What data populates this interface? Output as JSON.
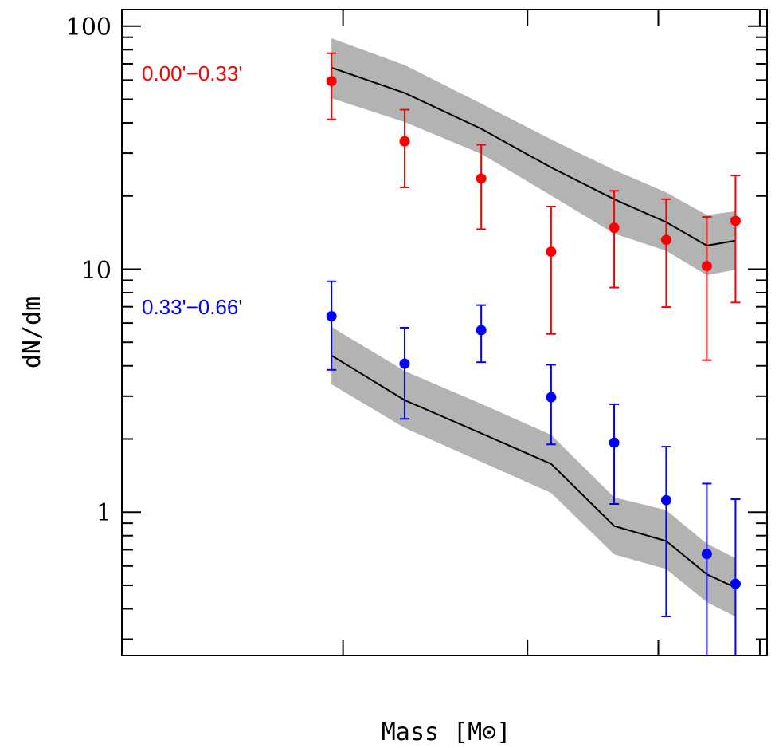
{
  "chart_data": {
    "type": "scatter",
    "title": "",
    "xlabel": "Mass [M⊙]",
    "ylabel": "dN/dm",
    "xscale": "log",
    "yscale": "log",
    "xlim": [
      1.23,
      5.08
    ],
    "ylim": [
      0.257,
      117
    ],
    "x_ticks": [
      2,
      3,
      4,
      5
    ],
    "x_tick_labels_visible": false,
    "y_ticks": [
      1,
      10,
      100
    ],
    "y_tick_labels": [
      "1",
      "10",
      "100"
    ],
    "grid": false,
    "colors": {
      "model_line": "#000000",
      "model_band": "#b3b3b3",
      "frame": "#000000"
    },
    "series": [
      {
        "name": "0.00'−0.33'",
        "color": "#ff0000",
        "x": [
          1.95,
          2.29,
          2.71,
          3.16,
          3.63,
          4.07,
          4.45,
          4.74
        ],
        "y": [
          59.4,
          33.6,
          23.6,
          11.8,
          14.8,
          13.2,
          10.3,
          15.8
        ],
        "y_err_high": [
          77.4,
          45.3,
          32.5,
          18.1,
          21.0,
          19.4,
          16.4,
          24.3
        ],
        "y_err_low": [
          41.3,
          21.7,
          14.6,
          5.41,
          8.4,
          6.98,
          4.22,
          7.29
        ],
        "model": {
          "x": [
            1.95,
            2.29,
            2.71,
            3.16,
            3.63,
            4.07,
            4.45,
            4.74
          ],
          "y": [
            67.5,
            53.1,
            37.8,
            26.2,
            19.4,
            15.6,
            12.5,
            13.1
          ],
          "upper": [
            89.1,
            69.2,
            48.0,
            34.2,
            25.6,
            20.7,
            16.7,
            17.3
          ],
          "lower": [
            50.5,
            40.3,
            29.8,
            20.1,
            14.0,
            11.9,
            9.44,
            9.94
          ]
        }
      },
      {
        "name": "0.33'−0.66'",
        "color": "#0000ff",
        "x": [
          1.95,
          2.29,
          2.71,
          3.16,
          3.63,
          4.07,
          4.45,
          4.74
        ],
        "y": [
          6.4,
          4.08,
          5.61,
          2.97,
          1.93,
          1.12,
          0.673,
          0.507
        ],
        "y_err_high": [
          8.91,
          5.74,
          7.11,
          4.04,
          2.78,
          1.86,
          1.31,
          1.13
        ],
        "y_err_low": [
          3.85,
          2.42,
          4.14,
          1.9,
          1.08,
          0.372,
          0.2,
          0.2
        ],
        "model": {
          "x": [
            1.95,
            2.29,
            2.71,
            3.16,
            3.63,
            4.07,
            4.45,
            4.74
          ],
          "y": [
            4.41,
            2.89,
            2.11,
            1.58,
            0.877,
            0.76,
            0.555,
            0.489
          ],
          "upper": [
            5.78,
            3.81,
            2.79,
            2.08,
            1.15,
            1.02,
            0.741,
            0.646
          ],
          "lower": [
            3.36,
            2.22,
            1.61,
            1.2,
            0.67,
            0.583,
            0.426,
            0.371
          ]
        }
      }
    ]
  }
}
